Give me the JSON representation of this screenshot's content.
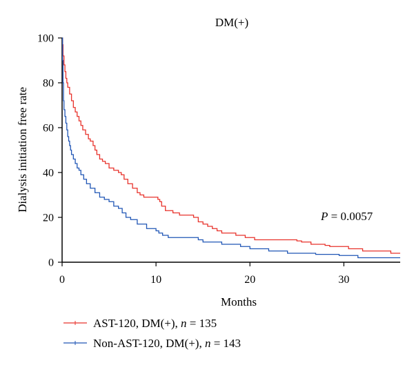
{
  "chart_data": {
    "type": "line",
    "title": "DM(+)",
    "xlabel": "Months",
    "ylabel": "Dialysis initiation free rate",
    "xlim": [
      0,
      36
    ],
    "ylim": [
      0,
      100
    ],
    "xticks": [
      0,
      10,
      20,
      30
    ],
    "yticks": [
      0,
      20,
      40,
      60,
      80,
      100
    ],
    "grid": false,
    "legend_position": "bottom-left",
    "annotation": {
      "italic": "P",
      "rest": " = 0.0057"
    },
    "series": [
      {
        "name": "AST-120, DM(+), n = 135",
        "legend": {
          "prefix": "AST-120, DM(+), ",
          "italic": "n",
          "suffix": " = 135"
        },
        "color": "#e8312a",
        "points": [
          [
            0,
            100
          ],
          [
            0.05,
            97
          ],
          [
            0.1,
            92
          ],
          [
            0.2,
            88
          ],
          [
            0.3,
            85
          ],
          [
            0.4,
            82
          ],
          [
            0.5,
            80
          ],
          [
            0.6,
            78
          ],
          [
            0.8,
            75
          ],
          [
            1.0,
            72
          ],
          [
            1.2,
            69
          ],
          [
            1.4,
            67
          ],
          [
            1.6,
            65
          ],
          [
            1.8,
            63
          ],
          [
            2.0,
            61
          ],
          [
            2.2,
            59
          ],
          [
            2.5,
            57
          ],
          [
            2.8,
            55
          ],
          [
            3.0,
            54
          ],
          [
            3.3,
            52
          ],
          [
            3.5,
            50
          ],
          [
            3.7,
            48
          ],
          [
            4.0,
            46
          ],
          [
            4.3,
            45
          ],
          [
            4.6,
            44
          ],
          [
            5.0,
            42
          ],
          [
            5.5,
            41
          ],
          [
            6.0,
            40
          ],
          [
            6.3,
            39
          ],
          [
            6.6,
            37
          ],
          [
            7.0,
            35
          ],
          [
            7.5,
            33
          ],
          [
            8.0,
            31
          ],
          [
            8.3,
            30
          ],
          [
            8.7,
            29
          ],
          [
            10.2,
            28
          ],
          [
            10.4,
            27
          ],
          [
            10.6,
            25
          ],
          [
            11.0,
            23
          ],
          [
            11.8,
            22
          ],
          [
            12.5,
            21
          ],
          [
            14.0,
            20
          ],
          [
            14.5,
            18
          ],
          [
            15.0,
            17
          ],
          [
            15.5,
            16
          ],
          [
            16.0,
            15
          ],
          [
            16.5,
            14
          ],
          [
            17.0,
            13
          ],
          [
            18.5,
            12
          ],
          [
            19.5,
            11
          ],
          [
            20.5,
            10
          ],
          [
            25.0,
            9.5
          ],
          [
            25.5,
            9
          ],
          [
            26.5,
            8
          ],
          [
            28.0,
            7.5
          ],
          [
            28.5,
            7
          ],
          [
            30.5,
            6
          ],
          [
            32.0,
            5
          ],
          [
            35.0,
            4
          ],
          [
            36.0,
            4
          ]
        ]
      },
      {
        "name": "Non-AST-120, DM(+), n = 143",
        "legend": {
          "prefix": "Non-AST-120, DM(+), ",
          "italic": "n",
          "suffix": " = 143"
        },
        "color": "#1f55b5",
        "points": [
          [
            0,
            100
          ],
          [
            0.05,
            90
          ],
          [
            0.1,
            80
          ],
          [
            0.15,
            72
          ],
          [
            0.2,
            68
          ],
          [
            0.3,
            65
          ],
          [
            0.4,
            62
          ],
          [
            0.5,
            59
          ],
          [
            0.6,
            56
          ],
          [
            0.7,
            54
          ],
          [
            0.8,
            52
          ],
          [
            0.9,
            50
          ],
          [
            1.0,
            48
          ],
          [
            1.2,
            46
          ],
          [
            1.4,
            44
          ],
          [
            1.6,
            42
          ],
          [
            1.8,
            41
          ],
          [
            2.0,
            39
          ],
          [
            2.3,
            37
          ],
          [
            2.6,
            35
          ],
          [
            3.0,
            33
          ],
          [
            3.5,
            31
          ],
          [
            4.0,
            29
          ],
          [
            4.5,
            28
          ],
          [
            5.0,
            27
          ],
          [
            5.5,
            25
          ],
          [
            6.0,
            24
          ],
          [
            6.4,
            22
          ],
          [
            6.8,
            20
          ],
          [
            7.3,
            19
          ],
          [
            8.0,
            17
          ],
          [
            9.0,
            15
          ],
          [
            10.0,
            14
          ],
          [
            10.3,
            13
          ],
          [
            10.7,
            12
          ],
          [
            11.3,
            11
          ],
          [
            14.5,
            10
          ],
          [
            15.0,
            9
          ],
          [
            17.0,
            8
          ],
          [
            19.0,
            7
          ],
          [
            20.0,
            6
          ],
          [
            22.0,
            5
          ],
          [
            24.0,
            4
          ],
          [
            27.0,
            3.5
          ],
          [
            29.5,
            3
          ],
          [
            31.5,
            2
          ],
          [
            36.0,
            2
          ]
        ]
      }
    ]
  }
}
